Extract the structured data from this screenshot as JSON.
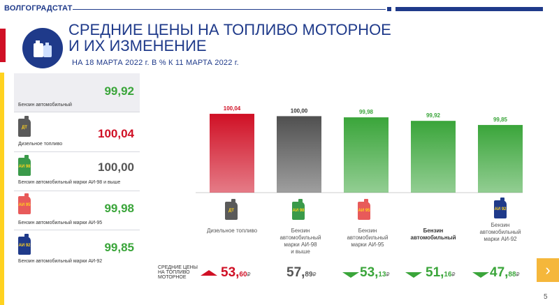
{
  "header": {
    "org": "ВОЛГОГРАДСТАТ"
  },
  "title": {
    "line1": "СРЕДНИЕ ЦЕНЫ НА ТОПЛИВО МОТОРНОЕ",
    "line2": "И ИХ ИЗМЕНЕНИЕ"
  },
  "subtitle": "НА 18 МАРТА 2022 г. В % К 11 МАРТА 2022 г.",
  "list": {
    "items": [
      {
        "name": "Бензин автомобильный",
        "value": "99,92",
        "color": "#3aa53a",
        "can": ""
      },
      {
        "name": "Дизельное топливо",
        "value": "100,04",
        "color": "#d01025",
        "can": "ДТ",
        "can_color": "#5a5a5a"
      },
      {
        "name": "Бензин автомобильный марки АИ-98 и выше",
        "value": "100,00",
        "color": "#555555",
        "can": "АИ 98",
        "can_color": "#3a9a4a"
      },
      {
        "name": "Бензин автомобильный марки АИ-95",
        "value": "99,98",
        "color": "#3aa53a",
        "can": "АИ 95",
        "can_color": "#e85a5a"
      },
      {
        "name": "Бензин автомобильный марки АИ-92",
        "value": "99,85",
        "color": "#3aa53a",
        "can": "АИ 92",
        "can_color": "#1f3a8a"
      }
    ]
  },
  "chart_data": {
    "type": "bar",
    "title": "",
    "categories": [
      "Дизельное топливо",
      "Бензин автомобильный марки АИ-98 и выше",
      "Бензин автомобильный марки АИ-95",
      "Бензин автомобильный",
      "Бензин автомобильный марки АИ-92"
    ],
    "values": [
      100.04,
      100.0,
      99.98,
      99.92,
      99.85
    ],
    "value_labels": [
      "100,04",
      "100,00",
      "99,98",
      "99,92",
      "99,85"
    ],
    "colors": [
      "#d01025",
      "#505050",
      "#3aa53a",
      "#3aa53a",
      "#3aa53a"
    ],
    "ylim": [
      98.7,
      100.1
    ],
    "grid": false,
    "legend": "none"
  },
  "cat_labels": [
    [
      "Дизельное топливо"
    ],
    [
      "Бензин",
      "автомобильный",
      "марки АИ-98",
      "и выше"
    ],
    [
      "Бензин",
      "автомобильный",
      "марки АИ-95"
    ],
    [
      "Бензин",
      "автомобильный"
    ],
    [
      "Бензин",
      "автомобильный",
      "марки АИ-92"
    ]
  ],
  "can_labels": [
    "ДТ",
    "АИ 98",
    "АИ 95",
    "",
    "АИ 92"
  ],
  "prices": {
    "caption": [
      "СРЕДНИЕ ЦЕНЫ",
      "НА ТОПЛИВО",
      "МОТОРНОЕ"
    ],
    "currency": "₽",
    "items": [
      {
        "int": "53,",
        "frac": "60",
        "trend": "up"
      },
      {
        "int": "57,",
        "frac": "89",
        "trend": "none"
      },
      {
        "int": "53,",
        "frac": "13",
        "trend": "down"
      },
      {
        "int": "51,",
        "frac": "16",
        "trend": "down"
      },
      {
        "int": "47,",
        "frac": "88",
        "trend": "down"
      }
    ]
  },
  "page": "5",
  "colors": {
    "brand": "#1f3a8a",
    "red": "#d01025",
    "green": "#3aa53a",
    "accent": "#f5b73b"
  }
}
